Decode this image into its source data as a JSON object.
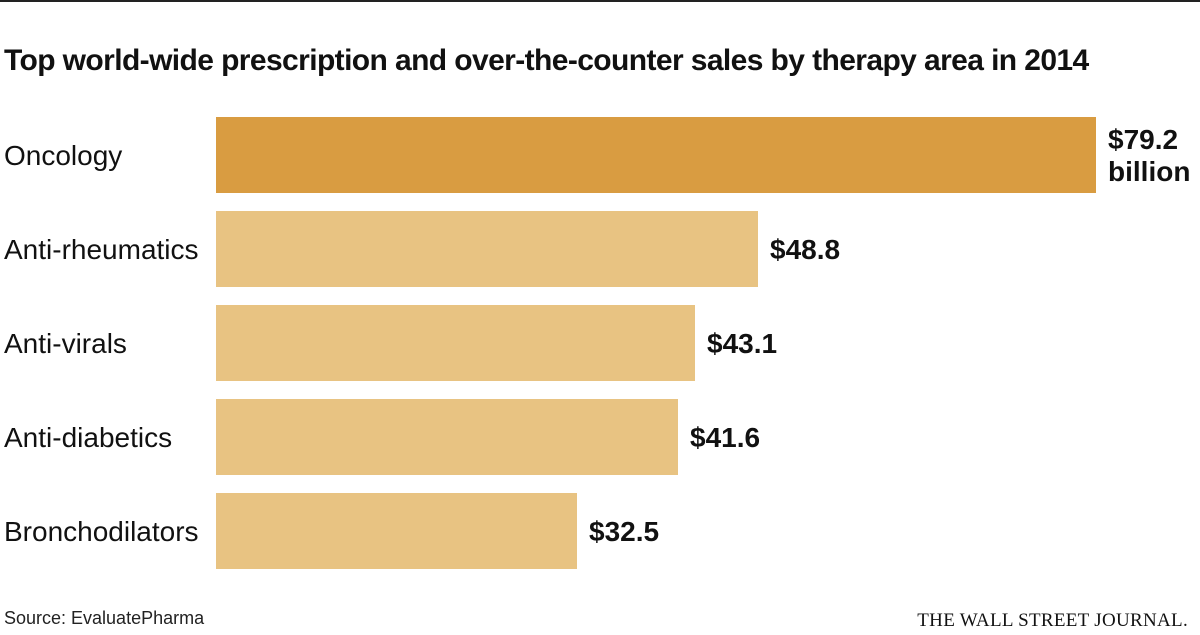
{
  "title": "Top world-wide prescription and over-the-counter sales by therapy area in 2014",
  "source": "Source: EvaluatePharma",
  "credit": "THE WALL STREET JOURNAL.",
  "chart_data": {
    "type": "bar",
    "orientation": "horizontal",
    "title": "Top world-wide prescription and over-the-counter sales by therapy area in 2014",
    "categories": [
      "Oncology",
      "Anti-rheumatics",
      "Anti-virals",
      "Anti-diabetics",
      "Bronchodilators"
    ],
    "values": [
      79.2,
      48.8,
      43.1,
      41.6,
      32.5
    ],
    "value_labels": [
      [
        "$79.2",
        "billion"
      ],
      [
        "$48.8"
      ],
      [
        "$43.1"
      ],
      [
        "$41.6"
      ],
      [
        "$32.5"
      ]
    ],
    "unit": "billion",
    "xlabel": "",
    "ylabel": "",
    "xlim": [
      0,
      79.2
    ],
    "grid": false,
    "legend": "none",
    "colors": {
      "highlight": "#D99C41",
      "default": "#E8C382"
    },
    "highlight_index": 0
  }
}
